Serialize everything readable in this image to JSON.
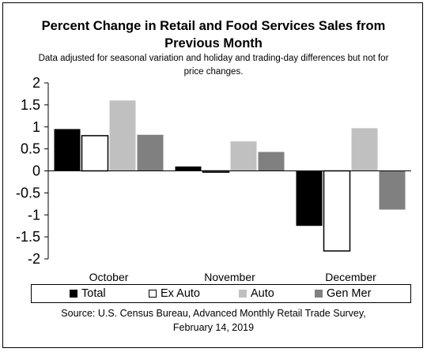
{
  "chart_data": {
    "type": "bar",
    "title_line1": "Percent Change in Retail and Food Services Sales from",
    "title_line2": "Previous Month",
    "subtitle_line1": "Data adjusted for seasonal variation and holiday and trading-day differences but not for",
    "subtitle_line2": "price changes.",
    "categories": [
      "October",
      "November",
      "December"
    ],
    "series": [
      {
        "name": "Total",
        "values": [
          0.95,
          0.1,
          -1.25
        ],
        "color": "#000000",
        "fill": "#000000"
      },
      {
        "name": "Ex Auto",
        "values": [
          0.8,
          -0.03,
          -1.82
        ],
        "color": "#000000",
        "fill": "#ffffff"
      },
      {
        "name": "Auto",
        "values": [
          1.6,
          0.67,
          0.97
        ],
        "color": "#c0c0c0",
        "fill": "#c0c0c0"
      },
      {
        "name": "Gen Mer",
        "values": [
          0.82,
          0.43,
          -0.88
        ],
        "color": "#808080",
        "fill": "#808080"
      }
    ],
    "ylim": [
      -2,
      2
    ],
    "yticks": [
      "2",
      "1.5",
      "1",
      "0.5",
      "0",
      "-0.5",
      "-1",
      "-1.5",
      "-2"
    ],
    "grid": false,
    "legend_position": "bottom",
    "source_line1": "Source: U.S. Census Bureau, Advanced Monthly Retail Trade Survey,",
    "source_line2": "February 14, 2019"
  }
}
